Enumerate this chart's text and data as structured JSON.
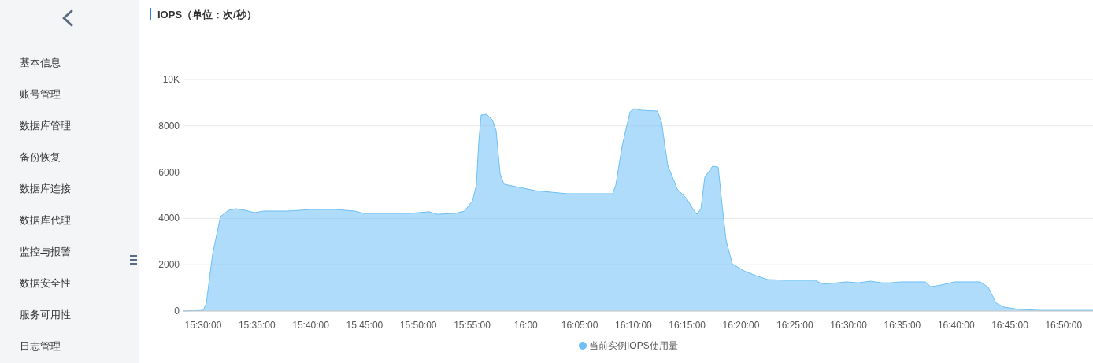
{
  "chart_data": [
    {
      "type": "other",
      "annotations": [
        "基本信息",
        "账号管理",
        "数据库管理",
        "备份恢复",
        "数据库连接",
        "数据库代理",
        "监控与报警",
        "数据安全性",
        "服务可用性",
        "日志管理"
      ]
    },
    {
      "type": "area",
      "title": "IOPS（单位：次/秒）",
      "x": [
        15.4683,
        15.5,
        15.5049,
        15.5146,
        15.5268,
        15.539,
        15.5512,
        15.5659,
        15.5793,
        15.594,
        15.6122,
        15.6305,
        15.6488,
        15.6671,
        15.6855,
        15.7038,
        15.7343,
        15.7489,
        15.7708,
        15.8197,
        15.8502,
        15.8624,
        15.8905,
        15.905,
        15.9173,
        15.9233,
        15.927,
        15.9307,
        15.9392,
        15.9478,
        15.9538,
        15.96,
        15.966,
        15.9783,
        16.0148,
        16.0637,
        16.1125,
        16.1345,
        16.1393,
        16.1492,
        16.1613,
        16.1673,
        16.1797,
        16.204,
        16.2102,
        16.2198,
        16.2345,
        16.2492,
        16.2588,
        16.265,
        16.2712,
        16.2772,
        16.2893,
        16.298,
        16.304,
        16.3102,
        16.3198,
        16.3382,
        16.3565,
        16.3748,
        16.4053,
        16.448,
        16.4602,
        16.4968,
        16.5152,
        16.5335,
        16.5517,
        16.564,
        16.5822,
        16.6188,
        16.6273,
        16.6432,
        16.664,
        16.7042,
        16.7165,
        16.7287,
        16.7408,
        16.7653,
        16.7958,
        16.8787
      ],
      "series": [
        {
          "name": "当前实例IOPS使用量",
          "color": "#6cc0f5",
          "values": [
            0,
            30,
            340,
            2450,
            4080,
            4350,
            4420,
            4350,
            4250,
            4320,
            4320,
            4320,
            4350,
            4390,
            4390,
            4390,
            4320,
            4220,
            4220,
            4220,
            4290,
            4180,
            4220,
            4320,
            4760,
            5440,
            7310,
            8470,
            8500,
            8270,
            7820,
            5950,
            5480,
            5410,
            5200,
            5070,
            5070,
            5070,
            5440,
            7140,
            8600,
            8740,
            8670,
            8640,
            8160,
            6290,
            5270,
            4860,
            4420,
            4180,
            4420,
            5780,
            6260,
            6220,
            4590,
            3060,
            2040,
            1730,
            1530,
            1360,
            1330,
            1330,
            1160,
            1260,
            1220,
            1290,
            1220,
            1220,
            1260,
            1260,
            1050,
            1120,
            1260,
            1260,
            1020,
            340,
            170,
            70,
            30,
            30
          ]
        }
      ],
      "xlim": [
        15.4683,
        16.8787
      ],
      "xticks": [
        {
          "value": 15.5,
          "label": "15:30:00"
        },
        {
          "value": 15.5833,
          "label": "15:35:00"
        },
        {
          "value": 15.6667,
          "label": "15:40:00"
        },
        {
          "value": 15.75,
          "label": "15:45:00"
        },
        {
          "value": 15.8333,
          "label": "15:50:00"
        },
        {
          "value": 15.9167,
          "label": "15:55:00"
        },
        {
          "value": 16,
          "label": "16:00"
        },
        {
          "value": 16.0833,
          "label": "16:05:00"
        },
        {
          "value": 16.1667,
          "label": "16:10:00"
        },
        {
          "value": 16.25,
          "label": "16:15:00"
        },
        {
          "value": 16.3333,
          "label": "16:20:00"
        },
        {
          "value": 16.4167,
          "label": "16:25:00"
        },
        {
          "value": 16.5,
          "label": "16:30:00"
        },
        {
          "value": 16.5833,
          "label": "16:35:00"
        },
        {
          "value": 16.6667,
          "label": "16:40:00"
        },
        {
          "value": 16.75,
          "label": "16:45:00"
        },
        {
          "value": 16.8333,
          "label": "16:50:00"
        }
      ],
      "ylim": [
        0,
        10000
      ],
      "yticks": [
        0,
        2000,
        4000,
        6000,
        8000,
        {
          "value": 10000,
          "label": "10K"
        }
      ],
      "grid": "y",
      "legend": "bottom"
    }
  ]
}
